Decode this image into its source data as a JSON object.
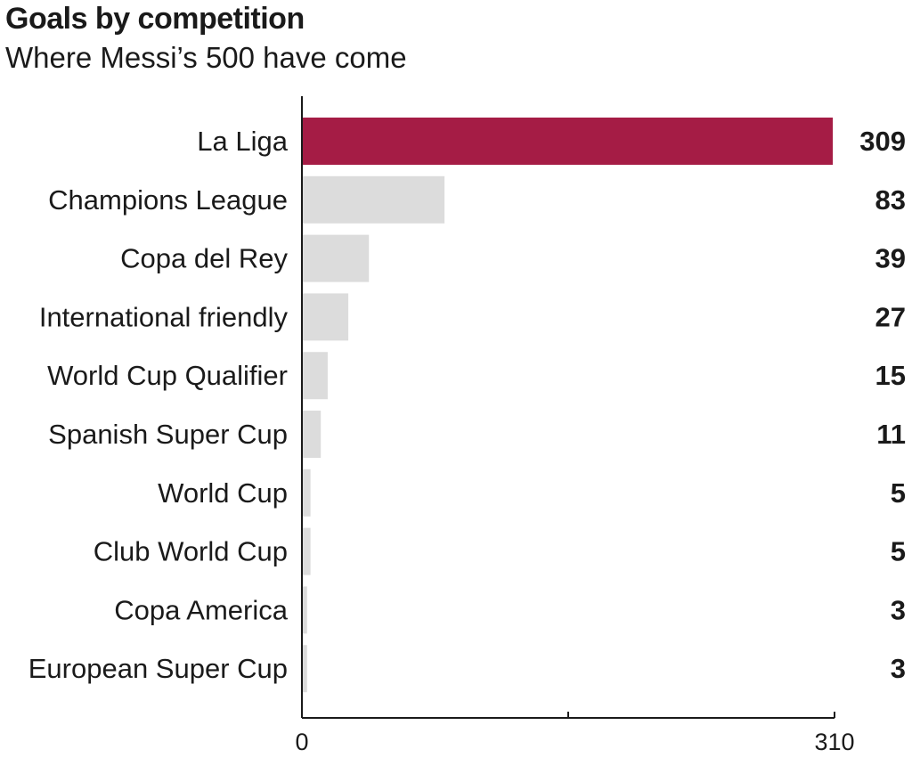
{
  "chart_data": {
    "type": "bar",
    "orientation": "horizontal",
    "title": "Goals by competition",
    "subtitle": "Where Messi’s 500 have come",
    "categories": [
      "La Liga",
      "Champions League",
      "Copa del Rey",
      "International friendly",
      "World Cup Qualifier",
      "Spanish Super Cup",
      "World Cup",
      "Club World Cup",
      "Copa America",
      "European Super Cup"
    ],
    "values": [
      309,
      83,
      39,
      27,
      15,
      11,
      5,
      5,
      3,
      3
    ],
    "xlim": [
      0,
      310
    ],
    "x_tick_labels": [
      "0",
      "310"
    ],
    "highlight_color": "#a51c45",
    "bar_color": "#dcdcdc",
    "grid": false
  }
}
